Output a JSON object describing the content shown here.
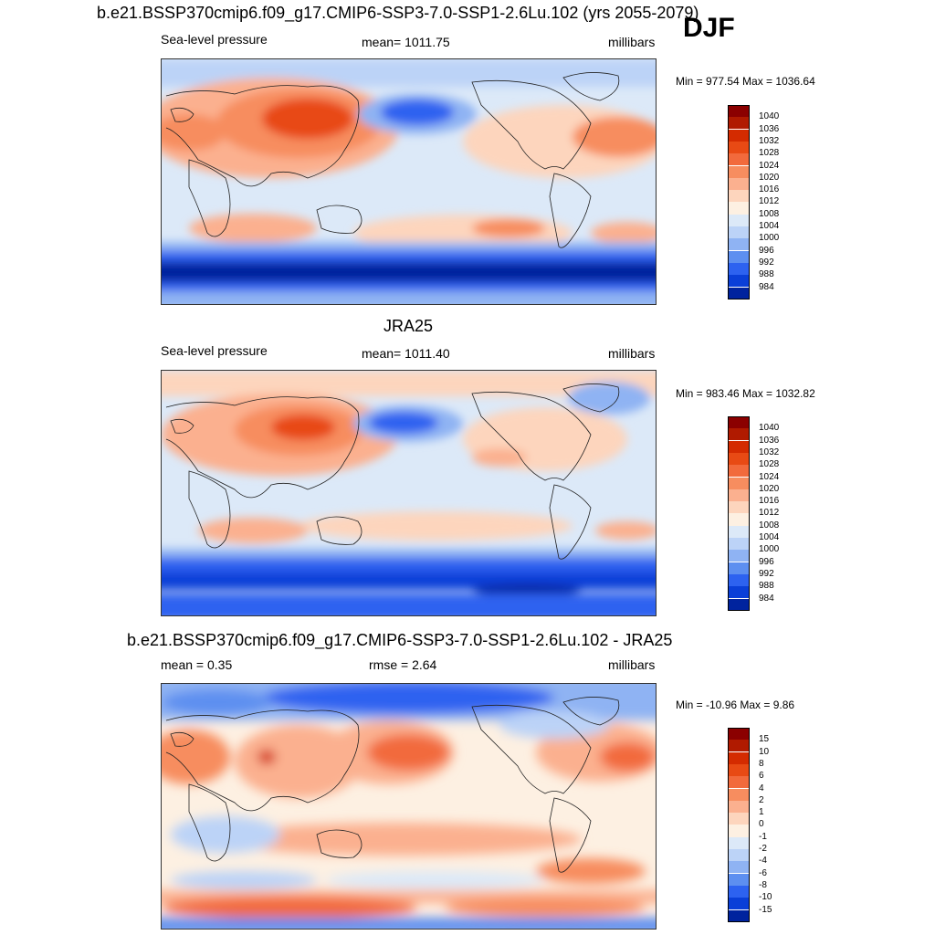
{
  "season": "DJF",
  "panels": [
    {
      "title": "b.e21.BSSP370cmip6.f09_g17.CMIP6-SSP3-7.0-SSP1-2.6Lu.102 (yrs 2055-2079)",
      "left_label": "Sea-level pressure",
      "center_label": "mean= 1011.75",
      "right_label": "millibars",
      "minmax": "Min = 977.54 Max = 1036.64",
      "colorbar": {
        "labels": [
          "1040",
          "1036",
          "1032",
          "1028",
          "1024",
          "1020",
          "1016",
          "1012",
          "1008",
          "1004",
          "1000",
          "996",
          "992",
          "988",
          "984"
        ],
        "colors": [
          "#8b0000",
          "#b01a00",
          "#d42b00",
          "#e84a14",
          "#f26a3c",
          "#f78d5f",
          "#fbb08f",
          "#fdd5bd",
          "#fdf0e2",
          "#dce9f8",
          "#bcd3f7",
          "#8fb3f3",
          "#5d8ff0",
          "#2d62f0",
          "#0a3fd8",
          "#00239e"
        ]
      }
    },
    {
      "title": "JRA25",
      "left_label": "Sea-level pressure",
      "center_label": "mean= 1011.40",
      "right_label": "millibars",
      "minmax": "Min = 983.46 Max = 1032.82",
      "colorbar": {
        "labels": [
          "1040",
          "1036",
          "1032",
          "1028",
          "1024",
          "1020",
          "1016",
          "1012",
          "1008",
          "1004",
          "1000",
          "996",
          "992",
          "988",
          "984"
        ],
        "colors": [
          "#8b0000",
          "#b01a00",
          "#d42b00",
          "#e84a14",
          "#f26a3c",
          "#f78d5f",
          "#fbb08f",
          "#fdd5bd",
          "#fdf0e2",
          "#dce9f8",
          "#bcd3f7",
          "#8fb3f3",
          "#5d8ff0",
          "#2d62f0",
          "#0a3fd8",
          "#00239e"
        ]
      }
    },
    {
      "title": "b.e21.BSSP370cmip6.f09_g17.CMIP6-SSP3-7.0-SSP1-2.6Lu.102 - JRA25",
      "left_label": "mean =   0.35",
      "center_label": "rmse =   2.64",
      "right_label": "millibars",
      "minmax": "Min = -10.96 Max =   9.86",
      "colorbar": {
        "labels": [
          "15",
          "10",
          "8",
          "6",
          "4",
          "2",
          "1",
          "0",
          "-1",
          "-2",
          "-4",
          "-6",
          "-8",
          "-10",
          "-15"
        ],
        "colors": [
          "#8b0000",
          "#b01a00",
          "#d42b00",
          "#e84a14",
          "#f26a3c",
          "#f78d5f",
          "#fbb08f",
          "#fdd5bd",
          "#fdf0e2",
          "#dce9f8",
          "#bcd3f7",
          "#8fb3f3",
          "#5d8ff0",
          "#2d62f0",
          "#0a3fd8",
          "#00239e"
        ]
      }
    }
  ]
}
